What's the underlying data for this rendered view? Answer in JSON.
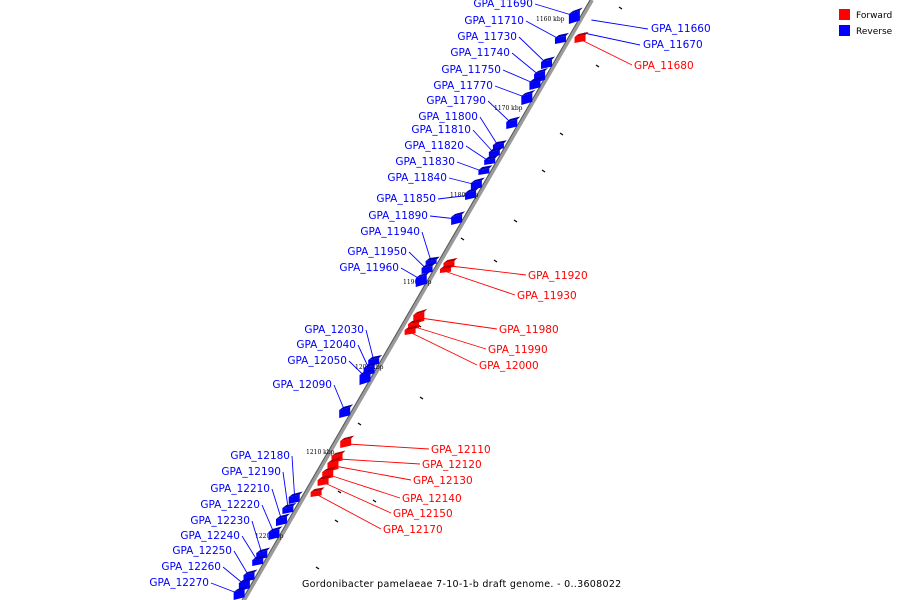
{
  "legend": {
    "forward": {
      "label": "Forward",
      "color": "#ff0000"
    },
    "reverse": {
      "label": "Reverse",
      "color": "#0000ff"
    }
  },
  "caption": "Gordonibacter pamelaeae 7-10-1-b draft genome. - 0..3608022",
  "ticks": [
    "1160 kbp",
    "1170 kbp",
    "1180 kbp",
    "1190 kbp",
    "1200 kbp",
    "1210 kbp",
    "1220 kbp"
  ],
  "genes": {
    "reverse": [
      "GPA_11690",
      "GPA_11710",
      "GPA_11730",
      "GPA_11740",
      "GPA_11750",
      "GPA_11770",
      "GPA_11790",
      "GPA_11800",
      "GPA_11810",
      "GPA_11820",
      "GPA_11830",
      "GPA_11840",
      "GPA_11850",
      "GPA_11890",
      "GPA_11940",
      "GPA_11950",
      "GPA_11960",
      "GPA_12030",
      "GPA_12040",
      "GPA_12050",
      "GPA_12090",
      "GPA_12180",
      "GPA_12190",
      "GPA_12210",
      "GPA_12220",
      "GPA_12230",
      "GPA_12240",
      "GPA_12250",
      "GPA_12260",
      "GPA_12270"
    ],
    "right_reverse": [
      "GPA_11660",
      "GPA_11670"
    ],
    "forward": [
      "GPA_11680",
      "GPA_11920",
      "GPA_11930",
      "GPA_11980",
      "GPA_11990",
      "GPA_12000",
      "GPA_12110",
      "GPA_12120",
      "GPA_12130",
      "GPA_12140",
      "GPA_12150",
      "GPA_12170"
    ]
  }
}
